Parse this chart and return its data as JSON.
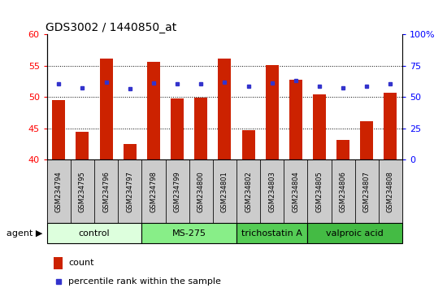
{
  "title": "GDS3002 / 1440850_at",
  "samples": [
    "GSM234794",
    "GSM234795",
    "GSM234796",
    "GSM234797",
    "GSM234798",
    "GSM234799",
    "GSM234800",
    "GSM234801",
    "GSM234802",
    "GSM234803",
    "GSM234804",
    "GSM234805",
    "GSM234806",
    "GSM234807",
    "GSM234808"
  ],
  "counts": [
    49.5,
    44.5,
    56.2,
    42.5,
    55.7,
    49.8,
    49.9,
    56.2,
    44.8,
    55.1,
    52.8,
    50.5,
    43.2,
    46.2,
    50.7
  ],
  "percentiles": [
    52.2,
    51.5,
    52.4,
    51.3,
    52.3,
    52.2,
    52.1,
    52.4,
    51.7,
    52.3,
    52.6,
    51.8,
    51.5,
    51.7,
    52.1
  ],
  "ylim_left": [
    40,
    60
  ],
  "ylim_right": [
    0,
    100
  ],
  "yticks_left": [
    40,
    45,
    50,
    55,
    60
  ],
  "yticks_right": [
    0,
    25,
    50,
    75,
    100
  ],
  "bar_color": "#cc2200",
  "dot_color": "#3333cc",
  "groups": [
    {
      "label": "control",
      "start": 0,
      "end": 3,
      "color": "#ddffdd"
    },
    {
      "label": "MS-275",
      "start": 4,
      "end": 7,
      "color": "#88ee88"
    },
    {
      "label": "trichostatin A",
      "start": 8,
      "end": 10,
      "color": "#55cc55"
    },
    {
      "label": "valproic acid",
      "start": 11,
      "end": 14,
      "color": "#44bb44"
    }
  ],
  "agent_label": "agent",
  "legend_count_label": "count",
  "legend_pct_label": "percentile rank within the sample",
  "tick_label_bg": "#cccccc",
  "grid_dotted_ticks": [
    45,
    50,
    55
  ]
}
